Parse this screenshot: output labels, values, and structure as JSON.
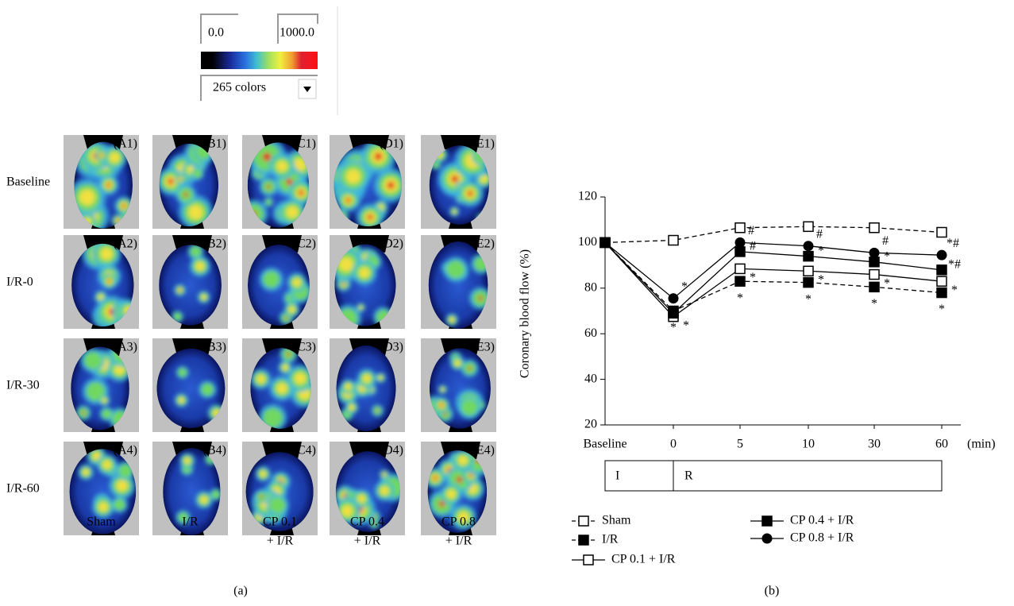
{
  "colorbar": {
    "min_label": "0.0",
    "max_label": "1000.0",
    "dropdown": "265 colors"
  },
  "panel_a": {
    "row_labels": [
      "Baseline",
      "I/R-0",
      "I/R-30",
      "I/R-60"
    ],
    "column_labels": [
      [
        "Sham"
      ],
      [
        "I/R"
      ],
      [
        "CP 0.1",
        "+ I/R"
      ],
      [
        "CP 0.4",
        "+ I/R"
      ],
      [
        "CP 0.8",
        "+ I/R"
      ]
    ],
    "image_labels": [
      [
        "(A1)",
        "(B1)",
        "(C1)",
        "(D1)",
        "(E1)"
      ],
      [
        "(A2)",
        "(B2)",
        "(C2)",
        "(D2)",
        "(E2)"
      ],
      [
        "(A3)",
        "(B3)",
        "(C3)",
        "(D3)",
        "(E3)"
      ],
      [
        "(A4)",
        "(B4)",
        "(C4)",
        "(D4)",
        "(E4)"
      ]
    ],
    "caption": "(a)"
  },
  "chart_data": {
    "type": "line",
    "caption": "(b)",
    "ylabel": "Coronary blood flow (%)",
    "xunit": "(min)",
    "categories": [
      "Baseline",
      "0",
      "5",
      "10",
      "30",
      "60"
    ],
    "ylim": [
      20,
      120
    ],
    "yticks": [
      20,
      40,
      60,
      80,
      100,
      120
    ],
    "grid": false,
    "phases": [
      "I",
      "R"
    ],
    "series": [
      {
        "name": "Sham",
        "color": "#000000",
        "dashed": true,
        "marker": "square-open",
        "values": [
          100,
          101,
          106.5,
          107,
          106.5,
          104.5
        ],
        "labels": [
          null,
          null,
          null,
          null,
          null,
          null
        ]
      },
      {
        "name": "I/R",
        "color": "#000000",
        "dashed": true,
        "marker": "square-filled",
        "values": [
          100,
          70,
          83,
          82.5,
          80.5,
          78
        ],
        "labels": [
          null,
          "*",
          "*",
          "*",
          "*",
          "*"
        ]
      },
      {
        "name": "CP 0.1 + I/R",
        "color": "#000000",
        "dashed": false,
        "marker": "square-open",
        "values": [
          100,
          67.5,
          88.5,
          87.5,
          86,
          83
        ],
        "labels": [
          null,
          "*",
          "*",
          "*",
          "*",
          "*"
        ]
      },
      {
        "name": "CP 0.4 + I/R",
        "color": "#000000",
        "dashed": false,
        "marker": "square-filled",
        "values": [
          100,
          69,
          96,
          94,
          91.5,
          88
        ],
        "labels": [
          null,
          null,
          "#",
          "*",
          "*",
          "*#"
        ]
      },
      {
        "name": "CP 0.8 + I/R",
        "color": "#000000",
        "dashed": false,
        "marker": "circle-filled",
        "values": [
          100,
          75.5,
          100,
          98.5,
          95.5,
          94.5
        ],
        "labels": [
          null,
          "*",
          "#",
          "#",
          "#",
          "*#"
        ]
      }
    ]
  }
}
